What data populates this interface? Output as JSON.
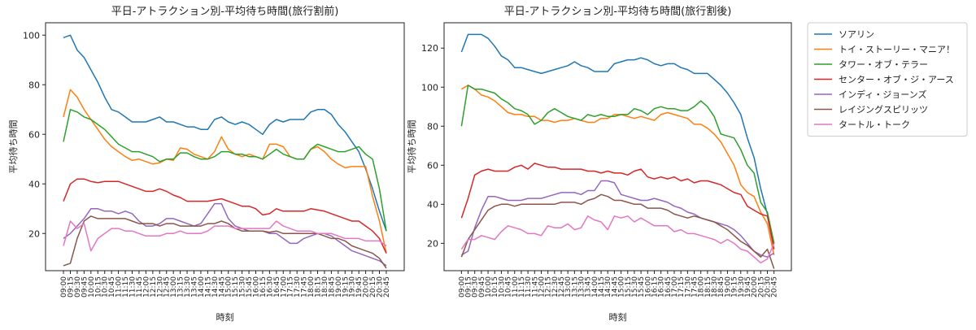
{
  "chart_data": [
    {
      "type": "line",
      "title": "平日-アトラクション別-平均待ち時間(旅行割前)",
      "x_label": "時刻",
      "y_label": "平均待ち時間",
      "categories": [
        "09:00",
        "09:15",
        "09:30",
        "09:45",
        "10:00",
        "10:15",
        "10:30",
        "10:45",
        "11:00",
        "11:15",
        "11:30",
        "11:45",
        "12:00",
        "12:15",
        "12:30",
        "12:45",
        "13:00",
        "13:15",
        "13:30",
        "13:45",
        "14:00",
        "14:15",
        "14:30",
        "14:45",
        "15:00",
        "15:15",
        "15:30",
        "15:45",
        "16:00",
        "16:15",
        "16:30",
        "16:45",
        "17:00",
        "17:15",
        "17:30",
        "17:45",
        "18:00",
        "18:15",
        "18:30",
        "18:45",
        "19:00",
        "19:15",
        "19:30",
        "19:45",
        "20:00",
        "20:15",
        "20:30",
        "20:45"
      ],
      "ylim": [
        5,
        105
      ],
      "yticks": [
        20,
        40,
        60,
        80,
        100
      ],
      "series": [
        {
          "color": "#1f77b4",
          "values": [
            99,
            100,
            94,
            91,
            86,
            81,
            75,
            70,
            69,
            67,
            65,
            65,
            65,
            66,
            67,
            65,
            65,
            64,
            63,
            63,
            62,
            62,
            66,
            67,
            65,
            64,
            65,
            64,
            62,
            60,
            64,
            66,
            65,
            66,
            66,
            66,
            69,
            70,
            70,
            68,
            64,
            61,
            57,
            53,
            46,
            38,
            29,
            21
          ]
        },
        {
          "color": "#ff7f0e",
          "values": [
            67,
            78,
            75,
            70,
            66,
            62,
            58,
            55,
            53,
            51,
            49.5,
            50,
            49,
            48,
            48.5,
            50,
            49.5,
            54.5,
            54,
            52,
            51,
            50,
            53,
            59,
            54,
            52,
            51,
            52,
            51,
            50,
            56,
            56,
            55,
            51,
            50,
            50,
            54,
            55,
            53,
            50,
            48,
            46.5,
            47,
            47,
            47,
            35,
            25,
            12
          ]
        },
        {
          "color": "#2ca02c",
          "values": [
            57,
            70,
            69,
            67,
            66,
            64,
            62,
            59,
            56,
            54.5,
            53,
            53,
            52,
            51,
            49,
            50,
            50,
            52.5,
            52.5,
            51,
            50,
            50,
            51,
            53,
            53,
            52,
            52,
            51,
            51,
            50,
            52,
            54,
            52,
            51,
            50,
            50,
            54,
            56,
            55,
            54,
            53,
            53,
            54,
            55,
            52,
            50,
            38,
            21
          ]
        },
        {
          "color": "#d62728",
          "values": [
            33,
            40,
            42,
            42,
            41,
            40.5,
            41,
            41,
            41,
            40,
            39,
            38,
            37,
            37,
            38,
            37,
            35.5,
            34.5,
            33,
            33,
            33,
            33,
            33.5,
            34,
            33,
            32,
            31,
            31,
            30,
            27.5,
            28,
            30,
            29,
            29,
            29,
            29,
            30,
            29.5,
            29,
            28,
            27,
            26,
            25,
            25,
            23,
            21,
            18,
            12
          ]
        },
        {
          "color": "#9467bd",
          "values": [
            18,
            20,
            23,
            26,
            30,
            30,
            29,
            29,
            28,
            29,
            28,
            25,
            23,
            23,
            24,
            26,
            26,
            25,
            24,
            23,
            24,
            28,
            32,
            32,
            26,
            23,
            22,
            21,
            21,
            21,
            20,
            20,
            18,
            16,
            16,
            18,
            19,
            20,
            20,
            19,
            17,
            15,
            13,
            12,
            11,
            10,
            9,
            7
          ]
        },
        {
          "color": "#8c564b",
          "values": [
            7,
            8,
            18,
            25,
            27,
            26,
            26,
            26,
            26,
            26,
            25,
            24,
            24,
            24,
            23,
            24,
            24,
            23,
            23,
            23,
            23,
            24,
            24,
            25,
            24,
            22,
            21,
            21,
            21,
            21,
            20.5,
            21,
            20,
            20,
            20,
            20,
            20,
            20,
            19,
            18,
            18,
            17,
            15,
            14,
            13,
            12,
            10,
            6
          ]
        },
        {
          "color": "#e377c2",
          "values": [
            15,
            25,
            22,
            24,
            13,
            18,
            20,
            22,
            22,
            21,
            21,
            20,
            19,
            19,
            19,
            20,
            20,
            21,
            20,
            20,
            20,
            21,
            23,
            23,
            23,
            22,
            22,
            22,
            22,
            22,
            22,
            25,
            23,
            22,
            21,
            21,
            21,
            20,
            20,
            20,
            19,
            18,
            18,
            18,
            17,
            17,
            17,
            15
          ]
        }
      ]
    },
    {
      "type": "line",
      "title": "平日-アトラクション別-平均待ち時間(旅行割後)",
      "x_label": "時刻",
      "y_label": "平均待ち時間",
      "categories": [
        "09:00",
        "09:15",
        "09:30",
        "09:45",
        "10:00",
        "10:15",
        "10:30",
        "10:45",
        "11:00",
        "11:15",
        "11:30",
        "11:45",
        "12:00",
        "12:15",
        "12:30",
        "12:45",
        "13:00",
        "13:15",
        "13:30",
        "13:45",
        "14:00",
        "14:15",
        "14:30",
        "14:45",
        "15:00",
        "15:15",
        "15:30",
        "15:45",
        "16:00",
        "16:15",
        "16:30",
        "16:45",
        "17:00",
        "17:15",
        "17:30",
        "17:45",
        "18:00",
        "18:15",
        "18:30",
        "18:45",
        "19:00",
        "19:15",
        "19:30",
        "19:45",
        "20:00",
        "20:15",
        "20:30",
        "20:45"
      ],
      "ylim": [
        6,
        133
      ],
      "yticks": [
        20,
        40,
        60,
        80,
        100,
        120
      ],
      "legend": "outside upper right",
      "series": [
        {
          "name": "ソアリン",
          "color": "#1f77b4",
          "values": [
            118,
            127,
            127,
            127,
            125,
            121,
            116,
            114,
            110,
            110,
            109,
            108,
            107,
            108,
            109,
            110,
            111,
            113,
            111,
            110,
            108,
            108,
            108,
            112,
            113,
            114,
            114,
            115,
            114,
            112,
            111,
            112,
            112,
            110,
            109,
            107,
            107,
            107,
            104,
            101,
            97,
            92,
            86,
            74,
            64,
            48,
            35,
            20
          ]
        },
        {
          "name": "トイ・ストーリー・マニア！",
          "color": "#ff7f0e",
          "values": [
            99,
            101,
            99,
            96,
            95,
            93,
            90,
            87,
            86,
            86,
            85,
            85,
            83,
            83,
            82,
            83,
            83,
            84,
            83,
            82,
            82,
            84,
            84,
            86,
            86,
            85,
            84,
            85,
            84,
            83,
            86,
            87,
            86,
            85,
            84,
            81,
            81,
            79,
            76,
            72,
            66,
            60,
            50,
            46,
            44,
            36,
            30,
            14
          ]
        },
        {
          "name": "タワー・オブ・テラー",
          "color": "#2ca02c",
          "values": [
            80,
            101,
            99,
            99,
            98,
            97,
            94,
            92,
            89,
            88,
            86,
            81,
            83,
            87,
            89,
            87,
            85,
            84,
            83,
            86,
            85,
            86,
            85,
            85,
            86,
            86,
            89,
            88,
            86,
            89,
            90,
            89,
            89,
            88,
            88,
            90,
            93,
            90,
            85,
            76,
            75,
            74,
            68,
            60,
            56,
            41,
            36,
            20
          ]
        },
        {
          "name": "センター・オブ・ジ・アース",
          "color": "#d62728",
          "values": [
            33,
            43,
            55,
            57,
            58,
            57,
            57,
            57,
            59,
            60,
            58,
            61,
            60,
            59,
            59,
            58,
            58,
            58,
            58,
            57,
            57,
            56,
            57,
            56,
            56,
            55,
            57,
            58,
            54,
            53,
            54,
            53,
            54,
            52,
            53,
            51,
            52,
            52,
            51,
            50,
            48,
            46,
            45,
            39,
            37,
            35,
            34,
            17
          ]
        },
        {
          "name": "インディ・ジョーンズ",
          "color": "#9467bd",
          "values": [
            14,
            16,
            28,
            37,
            44,
            44,
            43,
            42,
            42,
            42,
            43,
            43,
            43,
            44,
            45,
            46,
            46,
            46,
            45,
            47,
            47,
            52,
            52,
            51,
            45,
            44,
            43,
            42,
            42,
            43,
            42,
            41,
            39,
            38,
            36,
            35,
            33,
            32,
            31,
            30,
            29,
            27,
            24,
            20,
            16,
            14,
            13,
            15
          ]
        },
        {
          "name": "レイジングスピリッツ",
          "color": "#8c564b",
          "values": [
            13,
            22,
            27,
            32,
            37,
            39,
            40,
            40,
            39,
            40,
            40,
            40,
            40,
            40,
            40,
            41,
            41,
            41,
            40,
            42,
            43,
            45,
            44,
            42,
            42,
            41,
            40,
            40,
            38,
            38,
            38,
            37,
            35,
            34,
            33,
            34,
            33,
            32,
            31,
            29,
            27,
            24,
            21,
            19,
            16,
            13,
            17,
            7
          ]
        },
        {
          "name": "タートル・トーク",
          "color": "#e377c2",
          "values": [
            17,
            22,
            22,
            24,
            23,
            22,
            26,
            29,
            28,
            27,
            25,
            25,
            24,
            29,
            28,
            28,
            30,
            27,
            28,
            34,
            32,
            31,
            27,
            34,
            33,
            34,
            31,
            33,
            31,
            29,
            29,
            29,
            26,
            27,
            25,
            25,
            24,
            23,
            22,
            20,
            22,
            20,
            17,
            16,
            13,
            10,
            12,
            20
          ]
        }
      ]
    }
  ]
}
